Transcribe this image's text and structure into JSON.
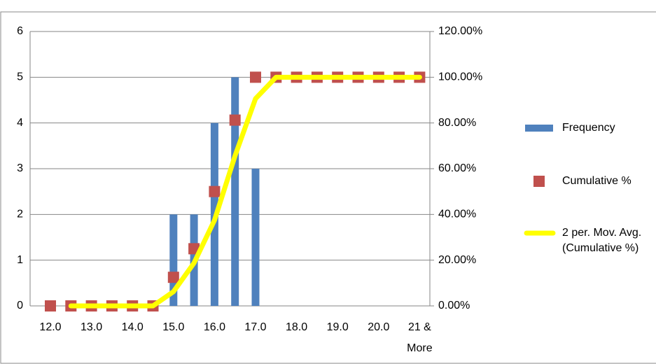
{
  "chart_data": {
    "type": "bar",
    "categories": [
      "12.0",
      null,
      "13.0",
      null,
      "14.0",
      null,
      "15.0",
      null,
      "16.0",
      null,
      "17.0",
      null,
      "18.0",
      null,
      "19.0",
      null,
      "20.0",
      null,
      "21 & More"
    ],
    "series": [
      {
        "name": "Frequency",
        "type": "bar",
        "color": "#4f81bd",
        "values": [
          0,
          0,
          0,
          0,
          0,
          0,
          2,
          2,
          4,
          5,
          3,
          0,
          0,
          0,
          0,
          0,
          0,
          0,
          0
        ]
      },
      {
        "name": "Cumulative %",
        "type": "marker",
        "axis": "y2",
        "color": "#c0504d",
        "values": [
          0,
          0,
          0,
          0,
          0,
          0,
          12.5,
          25,
          50,
          81.25,
          100,
          100,
          100,
          100,
          100,
          100,
          100,
          100,
          100
        ]
      },
      {
        "name": "2 per. Mov. Avg. (Cumulative %)",
        "type": "line",
        "axis": "y2",
        "color": "#ffff00",
        "values": [
          null,
          0,
          0,
          0,
          0,
          0,
          6.25,
          18.75,
          37.5,
          65.625,
          90.625,
          100,
          100,
          100,
          100,
          100,
          100,
          100,
          100
        ]
      }
    ],
    "ylim": [
      0,
      6
    ],
    "yticks": [
      0,
      1,
      2,
      3,
      4,
      5,
      6
    ],
    "y2lim": [
      0,
      120
    ],
    "y2ticks": [
      {
        "value": 0,
        "label": "0.00%"
      },
      {
        "value": 20,
        "label": "20.00%"
      },
      {
        "value": 40,
        "label": "40.00%"
      },
      {
        "value": 60,
        "label": "60.00%"
      },
      {
        "value": 80,
        "label": "80.00%"
      },
      {
        "value": 100,
        "label": "100.00%"
      },
      {
        "value": 120,
        "label": "120.00%"
      }
    ],
    "grid": true,
    "legend": "right"
  }
}
